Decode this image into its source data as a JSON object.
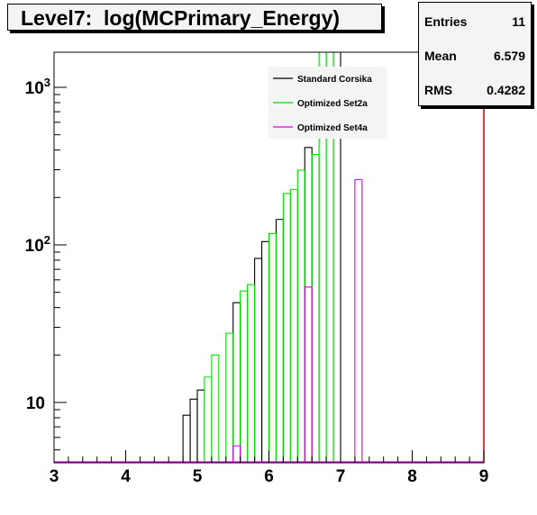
{
  "title": "Level7:  log(MCPrimary_Energy)",
  "stats": [
    {
      "label": "Entries",
      "value": "11"
    },
    {
      "label": "Mean",
      "value": "6.579"
    },
    {
      "label": "RMS",
      "value": "0.4282"
    }
  ],
  "chart_data": {
    "type": "histogram",
    "log_y": true,
    "xlim": [
      3,
      9
    ],
    "ylim": [
      4.2,
      1800
    ],
    "x_ticks": [
      "3",
      "4",
      "5",
      "6",
      "7",
      "8",
      "9"
    ],
    "y_ticks": [
      {
        "value": 10,
        "label": "10",
        "exp": ""
      },
      {
        "value": 100,
        "label": "10",
        "exp": "2"
      },
      {
        "value": 1000,
        "label": "10",
        "exp": "3"
      }
    ],
    "bin_width": 0.1,
    "baseline": 4.2,
    "legend": [
      {
        "name": "Standard Corsika",
        "color": "#000000"
      },
      {
        "name": "Optimized Set2a",
        "color": "#00dd00"
      },
      {
        "name": "Optimized Set4a",
        "color": "#dd00dd"
      }
    ],
    "series": [
      {
        "name": "Standard Corsika",
        "color": "#000000",
        "bars": [
          {
            "x": 4.8,
            "y": 8.3
          },
          {
            "x": 4.9,
            "y": 10.5
          },
          {
            "x": 5.0,
            "y": 12
          },
          {
            "x": 5.5,
            "y": 43
          },
          {
            "x": 5.8,
            "y": 82
          },
          {
            "x": 5.9,
            "y": 105
          },
          {
            "x": 6.1,
            "y": 145
          },
          {
            "x": 6.5,
            "y": 415
          },
          {
            "x": 6.9,
            "y": 1800
          }
        ]
      },
      {
        "name": "Optimized Set2a",
        "color": "#00dd00",
        "bars": [
          {
            "x": 5.1,
            "y": 14.5
          },
          {
            "x": 5.2,
            "y": 20
          },
          {
            "x": 5.4,
            "y": 27.5
          },
          {
            "x": 5.6,
            "y": 51
          },
          {
            "x": 5.7,
            "y": 56
          },
          {
            "x": 6.0,
            "y": 118
          },
          {
            "x": 6.2,
            "y": 212
          },
          {
            "x": 6.3,
            "y": 225
          },
          {
            "x": 6.4,
            "y": 298
          },
          {
            "x": 6.6,
            "y": 375
          },
          {
            "x": 6.7,
            "y": 1800
          },
          {
            "x": 6.8,
            "y": 1800
          }
        ]
      },
      {
        "name": "Optimized Set4a",
        "color": "#dd00dd",
        "bars": [
          {
            "x": 5.5,
            "y": 5.3
          },
          {
            "x": 6.5,
            "y": 54
          },
          {
            "x": 7.2,
            "y": 260
          }
        ]
      }
    ]
  }
}
